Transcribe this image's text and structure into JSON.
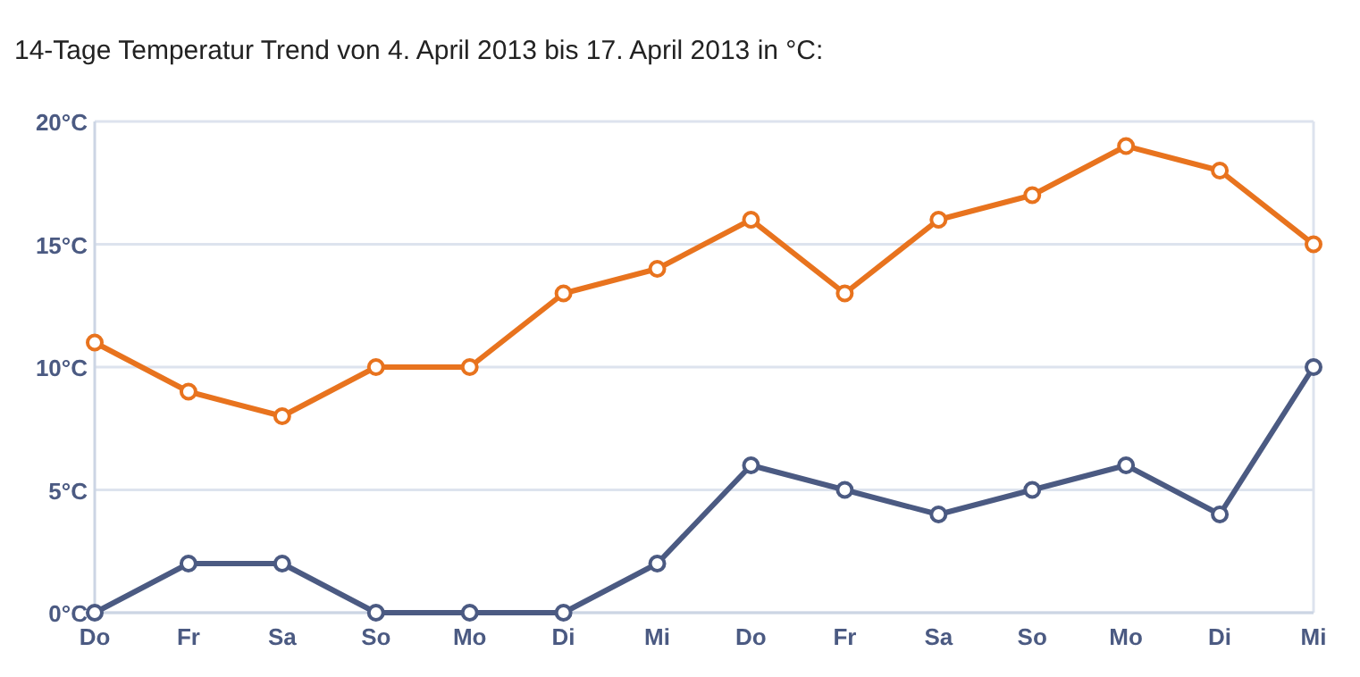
{
  "chart_data": {
    "type": "line",
    "title": "14-Tage Temperatur Trend von 4. April 2013 bis 17. April 2013 in °C:",
    "categories": [
      "Do",
      "Fr",
      "Sa",
      "So",
      "Mo",
      "Di",
      "Mi",
      "Do",
      "Fr",
      "Sa",
      "So",
      "Mo",
      "Di",
      "Mi"
    ],
    "series": [
      {
        "color": "#e8731e",
        "values": [
          11,
          9,
          8,
          10,
          10,
          13,
          14,
          16,
          13,
          16,
          17,
          19,
          18,
          15
        ]
      },
      {
        "color": "#4b5a82",
        "values": [
          0,
          2,
          2,
          0,
          0,
          0,
          2,
          6,
          5,
          4,
          5,
          6,
          4,
          10
        ]
      }
    ],
    "ylim": [
      0,
      20
    ],
    "yticks": [
      {
        "value": 0,
        "label": "0°C"
      },
      {
        "value": 5,
        "label": "5°C"
      },
      {
        "value": 10,
        "label": "10°C"
      },
      {
        "value": 15,
        "label": "15°C"
      },
      {
        "value": 20,
        "label": "20°C"
      }
    ],
    "grid": "y",
    "marker": "circle",
    "line_style": "solid"
  }
}
